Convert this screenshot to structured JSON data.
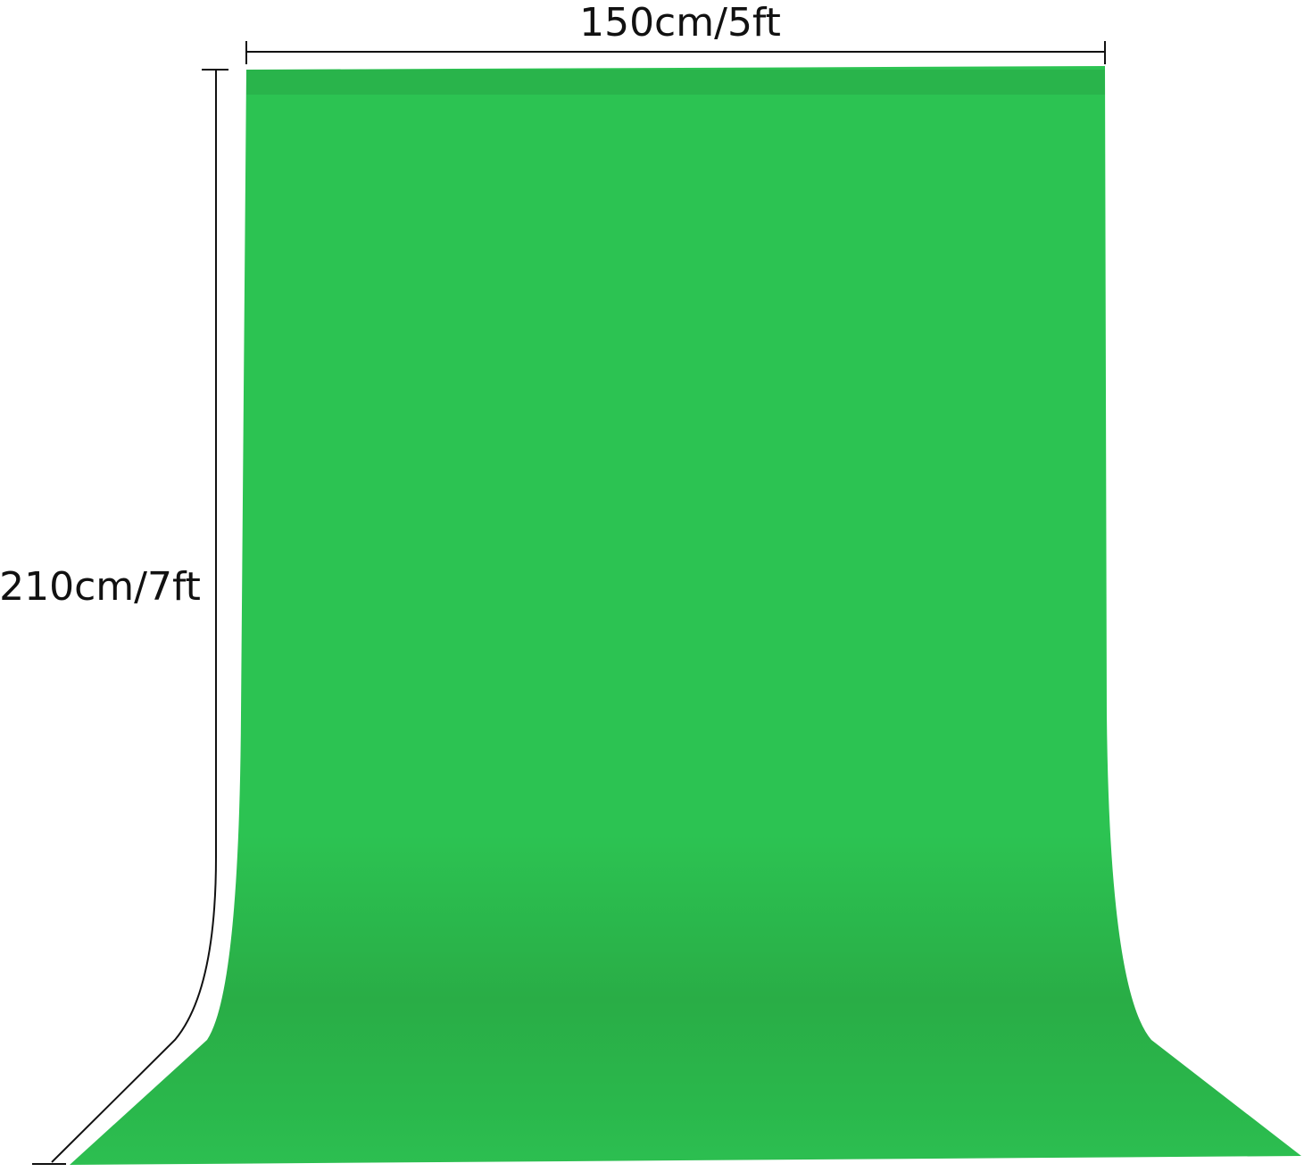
{
  "dimensions": {
    "width_label": "150cm/5ft",
    "height_label": "210cm/7ft"
  }
}
